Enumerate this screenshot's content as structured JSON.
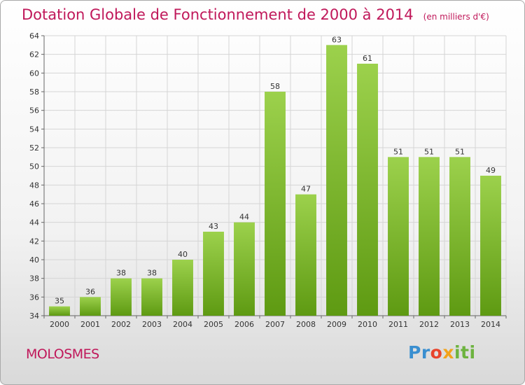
{
  "header": {
    "title": "Dotation Globale de Fonctionnement de 2000 à 2014",
    "subtitle": "(en milliers d'€)"
  },
  "footer": {
    "place": "MOLOSMES",
    "logo": "Proxiti"
  },
  "colors": {
    "bar_top": "#9cd14c",
    "bar_bottom": "#5e9a12",
    "accent": "#c0185a",
    "grid": "#d5d5d5"
  },
  "chart_data": {
    "type": "bar",
    "title": "Dotation Globale de Fonctionnement de 2000 à 2014",
    "subtitle": "(en milliers d'€)",
    "categories": [
      "2000",
      "2001",
      "2002",
      "2003",
      "2004",
      "2005",
      "2006",
      "2007",
      "2008",
      "2009",
      "2010",
      "2011",
      "2012",
      "2013",
      "2014"
    ],
    "values": [
      35,
      36,
      38,
      38,
      40,
      43,
      44,
      58,
      47,
      63,
      61,
      51,
      51,
      51,
      49
    ],
    "ylim": [
      34,
      64
    ],
    "yticks": [
      34,
      36,
      38,
      40,
      42,
      44,
      46,
      48,
      50,
      52,
      54,
      56,
      58,
      60,
      62,
      64
    ],
    "grid": true,
    "legend": "none"
  }
}
